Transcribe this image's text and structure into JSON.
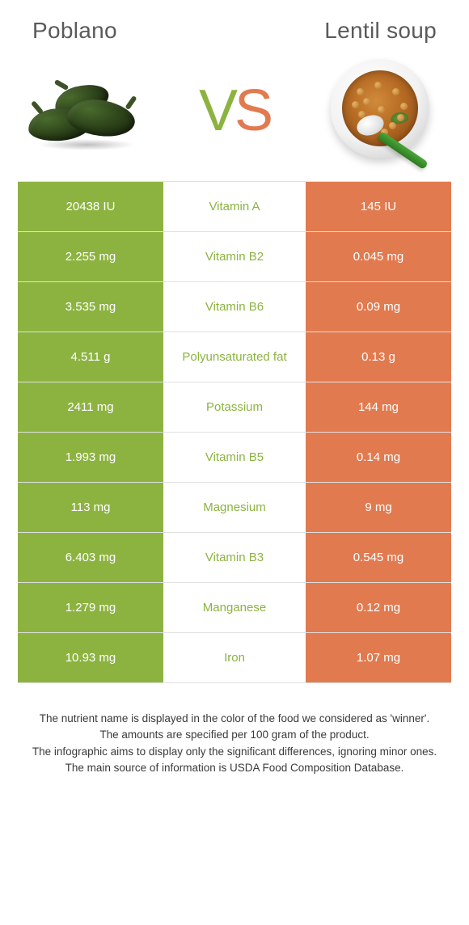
{
  "colors": {
    "left": "#8cb340",
    "right": "#e27a4f",
    "row_border": "#e0e0e0",
    "title_text": "#5a5a5a",
    "footer_text": "#3a3a3a"
  },
  "header": {
    "left_title": "Poblano",
    "right_title": "Lentil soup",
    "vs_v": "V",
    "vs_s": "S"
  },
  "rows": [
    {
      "left": "20438 IU",
      "nutrient": "Vitamin A",
      "right": "145 IU",
      "winner": "left"
    },
    {
      "left": "2.255 mg",
      "nutrient": "Vitamin B2",
      "right": "0.045 mg",
      "winner": "left"
    },
    {
      "left": "3.535 mg",
      "nutrient": "Vitamin B6",
      "right": "0.09 mg",
      "winner": "left"
    },
    {
      "left": "4.511 g",
      "nutrient": "Polyunsaturated fat",
      "right": "0.13 g",
      "winner": "left"
    },
    {
      "left": "2411 mg",
      "nutrient": "Potassium",
      "right": "144 mg",
      "winner": "left"
    },
    {
      "left": "1.993 mg",
      "nutrient": "Vitamin B5",
      "right": "0.14 mg",
      "winner": "left"
    },
    {
      "left": "113 mg",
      "nutrient": "Magnesium",
      "right": "9 mg",
      "winner": "left"
    },
    {
      "left": "6.403 mg",
      "nutrient": "Vitamin B3",
      "right": "0.545 mg",
      "winner": "left"
    },
    {
      "left": "1.279 mg",
      "nutrient": "Manganese",
      "right": "0.12 mg",
      "winner": "left"
    },
    {
      "left": "10.93 mg",
      "nutrient": "Iron",
      "right": "1.07 mg",
      "winner": "left"
    }
  ],
  "footer": {
    "l1": "The nutrient name is displayed in the color of the food we considered as 'winner'.",
    "l2": "The amounts are specified per 100 gram of the product.",
    "l3": "The infographic aims to display only the significant differences, ignoring minor ones.",
    "l4": "The main source of information is USDA Food Composition Database."
  }
}
